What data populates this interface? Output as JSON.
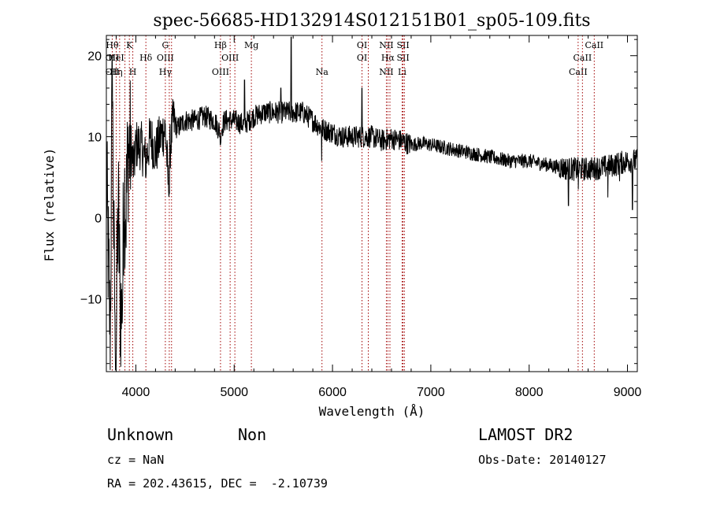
{
  "title": "spec-56685-HD132914S012151B01_sp05-109.fits",
  "chart_data": {
    "type": "line",
    "xlabel": "Wavelength (Å)",
    "ylabel": "Flux (relative)",
    "xlim": [
      3700,
      9100
    ],
    "ylim": [
      -19,
      22.5
    ],
    "x_ticks": [
      4000,
      5000,
      6000,
      7000,
      8000,
      9000
    ],
    "y_ticks": [
      -10,
      0,
      10,
      20
    ],
    "y_tick_labels": [
      "−10",
      "0",
      "10",
      "20"
    ],
    "spectrum_anchors": [
      [
        3700,
        5
      ],
      [
        3720,
        -5
      ],
      [
        3740,
        -15
      ],
      [
        3760,
        18
      ],
      [
        3780,
        -8
      ],
      [
        3800,
        -16
      ],
      [
        3820,
        2
      ],
      [
        3840,
        -10
      ],
      [
        3860,
        -13
      ],
      [
        3880,
        4
      ],
      [
        3900,
        1
      ],
      [
        3920,
        8
      ],
      [
        3950,
        9
      ],
      [
        3980,
        6
      ],
      [
        4000,
        9
      ],
      [
        4050,
        9
      ],
      [
        4100,
        7
      ],
      [
        4150,
        10
      ],
      [
        4200,
        8
      ],
      [
        4250,
        10
      ],
      [
        4300,
        11
      ],
      [
        4330,
        4
      ],
      [
        4350,
        9
      ],
      [
        4380,
        12
      ],
      [
        4420,
        11
      ],
      [
        4500,
        12
      ],
      [
        4600,
        12
      ],
      [
        4700,
        12.5
      ],
      [
        4800,
        12
      ],
      [
        4861,
        10.5
      ],
      [
        4900,
        12
      ],
      [
        5000,
        12
      ],
      [
        5100,
        11.5
      ],
      [
        5200,
        12.5
      ],
      [
        5300,
        13
      ],
      [
        5400,
        13
      ],
      [
        5500,
        13
      ],
      [
        5600,
        13
      ],
      [
        5700,
        13
      ],
      [
        5800,
        12
      ],
      [
        5890,
        11
      ],
      [
        6000,
        10.5
      ],
      [
        6100,
        10
      ],
      [
        6200,
        10
      ],
      [
        6300,
        10
      ],
      [
        6400,
        10
      ],
      [
        6500,
        9.5
      ],
      [
        6600,
        9.8
      ],
      [
        6700,
        9.5
      ],
      [
        6800,
        9
      ],
      [
        6900,
        9.2
      ],
      [
        7000,
        9
      ],
      [
        7200,
        8.5
      ],
      [
        7400,
        8
      ],
      [
        7600,
        7.5
      ],
      [
        7800,
        7
      ],
      [
        8000,
        7
      ],
      [
        8200,
        6.5
      ],
      [
        8400,
        6
      ],
      [
        8600,
        6
      ],
      [
        8800,
        6.3
      ],
      [
        9000,
        7
      ],
      [
        9100,
        7
      ]
    ],
    "spectrum_spikes": [
      [
        3760,
        20
      ],
      [
        3790,
        -16
      ],
      [
        3860,
        -13
      ],
      [
        4100,
        5
      ],
      [
        4340,
        3
      ],
      [
        4860,
        9
      ],
      [
        5105,
        17
      ],
      [
        5475,
        16
      ],
      [
        5580,
        23
      ],
      [
        5890,
        7
      ],
      [
        6300,
        16
      ],
      [
        6560,
        9
      ],
      [
        7050,
        8.5
      ],
      [
        8400,
        1.5
      ],
      [
        8500,
        3.5
      ],
      [
        8800,
        2.5
      ],
      [
        8920,
        4.5
      ],
      [
        9050,
        1
      ]
    ],
    "line_markers": [
      {
        "x": 3760,
        "rows": [
          "Hθ",
          "OII",
          "OII"
        ]
      },
      {
        "x": 3800,
        "rows": [
          "",
          "HeI",
          "Hη"
        ]
      },
      {
        "x": 3835,
        "rows": [
          "",
          "",
          ""
        ]
      },
      {
        "x": 3889,
        "rows": [
          "",
          "",
          ""
        ]
      },
      {
        "x": 3934,
        "rows": [
          "K",
          "",
          ""
        ]
      },
      {
        "x": 3969,
        "rows": [
          "",
          "",
          "H"
        ]
      },
      {
        "x": 4102,
        "rows": [
          "",
          "Hδ",
          ""
        ]
      },
      {
        "x": 4300,
        "rows": [
          "G",
          "OIII",
          "Hγ"
        ]
      },
      {
        "x": 4340,
        "rows": [
          "",
          "",
          ""
        ]
      },
      {
        "x": 4363,
        "rows": [
          "",
          "",
          ""
        ]
      },
      {
        "x": 4861,
        "rows": [
          "Hβ",
          "",
          "OIII"
        ]
      },
      {
        "x": 4959,
        "rows": [
          "",
          "OIII",
          ""
        ]
      },
      {
        "x": 5007,
        "rows": [
          "",
          "",
          ""
        ]
      },
      {
        "x": 5175,
        "rows": [
          "Mg",
          "",
          ""
        ]
      },
      {
        "x": 5893,
        "rows": [
          "",
          "",
          "Na"
        ]
      },
      {
        "x": 6300,
        "rows": [
          "OI",
          "OI",
          ""
        ]
      },
      {
        "x": 6364,
        "rows": [
          "",
          "",
          ""
        ]
      },
      {
        "x": 6548,
        "rows": [
          "NII",
          "",
          "NII"
        ]
      },
      {
        "x": 6563,
        "rows": [
          "",
          "Hα",
          ""
        ]
      },
      {
        "x": 6584,
        "rows": [
          "",
          "",
          ""
        ]
      },
      {
        "x": 6708,
        "rows": [
          "",
          "",
          "Li"
        ]
      },
      {
        "x": 6717,
        "rows": [
          "SII",
          "SII",
          ""
        ]
      },
      {
        "x": 6731,
        "rows": [
          "",
          "",
          ""
        ]
      },
      {
        "x": 8498,
        "rows": [
          "",
          "",
          "CaII"
        ]
      },
      {
        "x": 8542,
        "rows": [
          "",
          "CaII",
          ""
        ]
      },
      {
        "x": 8662,
        "rows": [
          "CaII",
          "",
          ""
        ]
      }
    ]
  },
  "info": {
    "class": "Unknown",
    "subclass": "Non",
    "cz": "cz = NaN",
    "coords": "RA = 202.43615, DEC =  -2.10739",
    "survey": "LAMOST DR2",
    "obs_date": "Obs-Date: 20140127"
  }
}
